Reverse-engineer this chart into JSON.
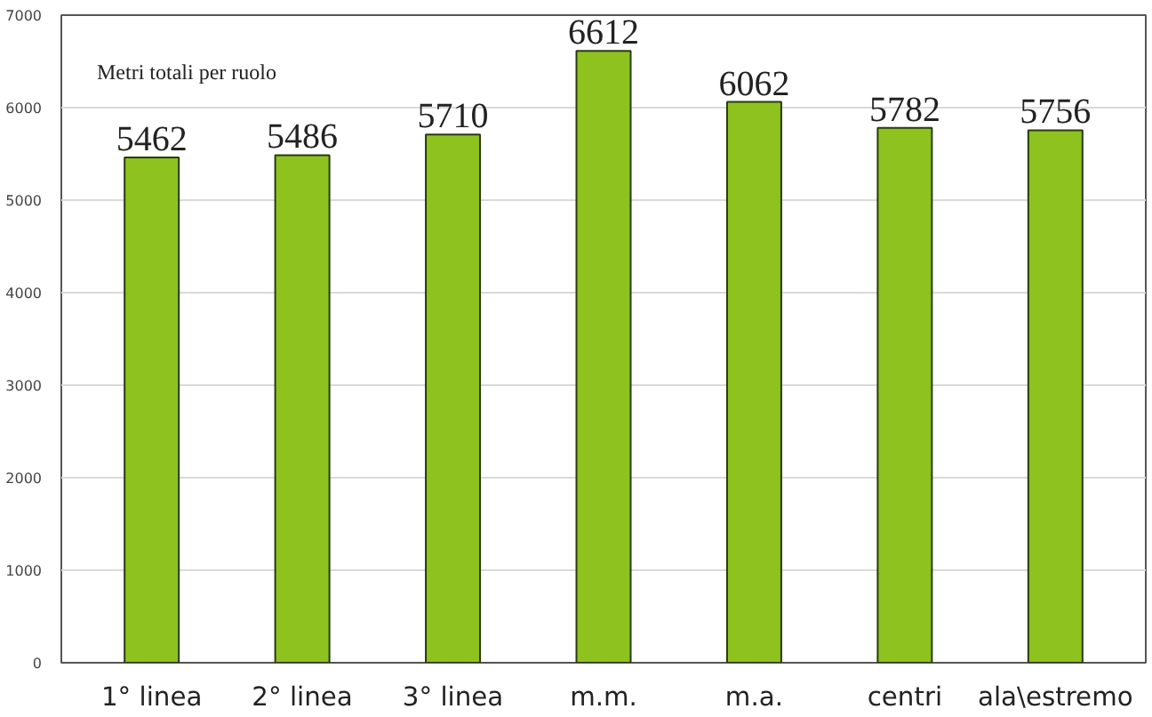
{
  "chart_data": {
    "type": "bar",
    "title": "Metri totali per ruolo",
    "categories": [
      "1° linea",
      "2° linea",
      "3° linea",
      "m.m.",
      "m.a.",
      "centri",
      "ala\\estremo"
    ],
    "values": [
      5462,
      5486,
      5710,
      6612,
      6062,
      5782,
      5756
    ],
    "color": "#8dc21f",
    "ylim": [
      0,
      7000
    ],
    "yticks": [
      0,
      1000,
      2000,
      3000,
      4000,
      5000,
      6000,
      7000
    ],
    "grid": "y",
    "data_labels": true
  }
}
